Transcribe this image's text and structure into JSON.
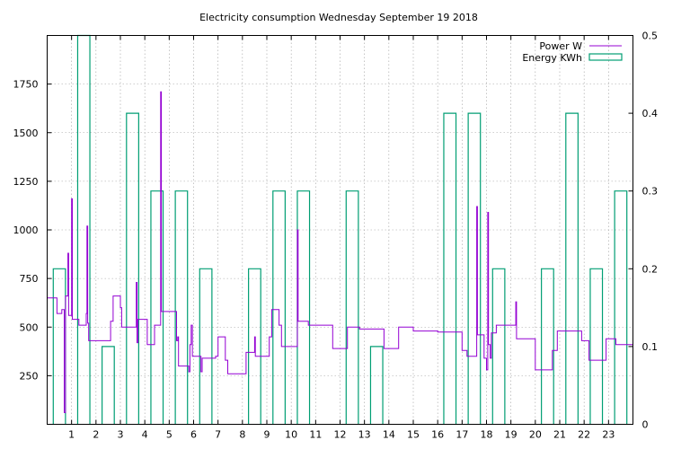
{
  "chart_data": {
    "type": "line",
    "title": "Electricity consumption Wednesday September 19 2018",
    "xlabel": "",
    "ylabel": "",
    "y2label": "",
    "xlim": [
      0,
      24
    ],
    "ylim": [
      0,
      2000
    ],
    "y2lim": [
      0,
      0.5
    ],
    "x_ticks": [
      "1",
      "2",
      "3",
      "4",
      "5",
      "6",
      "7",
      "8",
      "9",
      "10",
      "11",
      "12",
      "13",
      "14",
      "15",
      "16",
      "17",
      "18",
      "19",
      "20",
      "21",
      "22",
      "23"
    ],
    "y_ticks": [
      "250",
      "500",
      "750",
      "1000",
      "1250",
      "1500",
      "1750"
    ],
    "y2_ticks": [
      "0",
      "0.1",
      "0.2",
      "0.3",
      "0.4",
      "0.5"
    ],
    "grid": true,
    "legend_position": "top-right",
    "colors": {
      "power": "#9400d3",
      "energy": "#009e73"
    },
    "series": [
      {
        "name": "Power W",
        "type": "line",
        "axis": "y",
        "points": [
          [
            0.0,
            650
          ],
          [
            0.4,
            650
          ],
          [
            0.4,
            570
          ],
          [
            0.6,
            570
          ],
          [
            0.6,
            590
          ],
          [
            0.7,
            590
          ],
          [
            0.7,
            60
          ],
          [
            0.75,
            60
          ],
          [
            0.75,
            660
          ],
          [
            0.85,
            660
          ],
          [
            0.85,
            880
          ],
          [
            0.88,
            880
          ],
          [
            0.88,
            560
          ],
          [
            1.0,
            560
          ],
          [
            1.0,
            1160
          ],
          [
            1.03,
            1160
          ],
          [
            1.03,
            540
          ],
          [
            1.3,
            540
          ],
          [
            1.3,
            510
          ],
          [
            1.6,
            510
          ],
          [
            1.6,
            570
          ],
          [
            1.63,
            570
          ],
          [
            1.63,
            1020
          ],
          [
            1.66,
            1020
          ],
          [
            1.66,
            520
          ],
          [
            1.7,
            520
          ],
          [
            1.7,
            430
          ],
          [
            2.6,
            430
          ],
          [
            2.6,
            530
          ],
          [
            2.7,
            530
          ],
          [
            2.7,
            660
          ],
          [
            3.0,
            660
          ],
          [
            3.0,
            600
          ],
          [
            3.05,
            600
          ],
          [
            3.05,
            500
          ],
          [
            3.65,
            500
          ],
          [
            3.65,
            730
          ],
          [
            3.68,
            730
          ],
          [
            3.68,
            420
          ],
          [
            3.72,
            420
          ],
          [
            3.72,
            540
          ],
          [
            4.1,
            540
          ],
          [
            4.1,
            410
          ],
          [
            4.4,
            410
          ],
          [
            4.4,
            510
          ],
          [
            4.65,
            510
          ],
          [
            4.65,
            1710
          ],
          [
            4.68,
            1710
          ],
          [
            4.68,
            580
          ],
          [
            5.3,
            580
          ],
          [
            5.3,
            430
          ],
          [
            5.35,
            430
          ],
          [
            5.35,
            450
          ],
          [
            5.38,
            450
          ],
          [
            5.38,
            300
          ],
          [
            5.8,
            300
          ],
          [
            5.8,
            270
          ],
          [
            5.85,
            270
          ],
          [
            5.85,
            410
          ],
          [
            5.9,
            410
          ],
          [
            5.9,
            510
          ],
          [
            5.95,
            510
          ],
          [
            5.95,
            350
          ],
          [
            6.3,
            350
          ],
          [
            6.3,
            270
          ],
          [
            6.35,
            270
          ],
          [
            6.35,
            340
          ],
          [
            6.9,
            340
          ],
          [
            6.9,
            350
          ],
          [
            7.0,
            350
          ],
          [
            7.0,
            450
          ],
          [
            7.3,
            450
          ],
          [
            7.3,
            330
          ],
          [
            7.4,
            330
          ],
          [
            7.4,
            260
          ],
          [
            8.15,
            260
          ],
          [
            8.15,
            370
          ],
          [
            8.5,
            370
          ],
          [
            8.5,
            450
          ],
          [
            8.53,
            450
          ],
          [
            8.53,
            350
          ],
          [
            9.1,
            350
          ],
          [
            9.1,
            450
          ],
          [
            9.2,
            450
          ],
          [
            9.2,
            590
          ],
          [
            9.5,
            590
          ],
          [
            9.5,
            510
          ],
          [
            9.6,
            510
          ],
          [
            9.6,
            400
          ],
          [
            10.25,
            400
          ],
          [
            10.25,
            1000
          ],
          [
            10.28,
            1000
          ],
          [
            10.28,
            530
          ],
          [
            10.7,
            530
          ],
          [
            10.7,
            510
          ],
          [
            11.7,
            510
          ],
          [
            11.7,
            390
          ],
          [
            12.3,
            390
          ],
          [
            12.3,
            500
          ],
          [
            12.8,
            500
          ],
          [
            12.8,
            490
          ],
          [
            13.8,
            490
          ],
          [
            13.8,
            390
          ],
          [
            14.4,
            390
          ],
          [
            14.4,
            500
          ],
          [
            15.0,
            500
          ],
          [
            15.0,
            480
          ],
          [
            16.0,
            480
          ],
          [
            16.0,
            475
          ],
          [
            17.0,
            475
          ],
          [
            17.0,
            380
          ],
          [
            17.2,
            380
          ],
          [
            17.2,
            350
          ],
          [
            17.6,
            350
          ],
          [
            17.6,
            1120
          ],
          [
            17.63,
            1120
          ],
          [
            17.63,
            460
          ],
          [
            17.9,
            460
          ],
          [
            17.9,
            340
          ],
          [
            18.0,
            340
          ],
          [
            18.0,
            280
          ],
          [
            18.05,
            280
          ],
          [
            18.05,
            1090
          ],
          [
            18.08,
            1090
          ],
          [
            18.08,
            410
          ],
          [
            18.15,
            410
          ],
          [
            18.15,
            340
          ],
          [
            18.2,
            340
          ],
          [
            18.2,
            470
          ],
          [
            18.4,
            470
          ],
          [
            18.4,
            510
          ],
          [
            19.2,
            510
          ],
          [
            19.2,
            630
          ],
          [
            19.23,
            630
          ],
          [
            19.23,
            440
          ],
          [
            20.0,
            440
          ],
          [
            20.0,
            280
          ],
          [
            20.7,
            280
          ],
          [
            20.7,
            380
          ],
          [
            20.9,
            380
          ],
          [
            20.9,
            480
          ],
          [
            21.9,
            480
          ],
          [
            21.9,
            430
          ],
          [
            22.2,
            430
          ],
          [
            22.2,
            330
          ],
          [
            22.9,
            330
          ],
          [
            22.9,
            440
          ],
          [
            23.3,
            440
          ],
          [
            23.3,
            410
          ],
          [
            24.0,
            410
          ]
        ]
      },
      {
        "name": "Energy KWh",
        "type": "bar",
        "axis": "y2",
        "x": [
          0,
          1,
          2,
          3,
          4,
          5,
          6,
          7,
          8,
          9,
          10,
          11,
          12,
          13,
          14,
          15,
          16,
          17,
          18,
          19,
          20,
          21,
          22,
          23
        ],
        "values": [
          0.2,
          0.5,
          0.1,
          0.4,
          0.3,
          0.3,
          0.2,
          0,
          0.2,
          0.3,
          0.3,
          0,
          0.3,
          0.1,
          0,
          0,
          0.4,
          0.4,
          0.2,
          0,
          0.2,
          0.4,
          0.2,
          0.3
        ]
      }
    ]
  }
}
